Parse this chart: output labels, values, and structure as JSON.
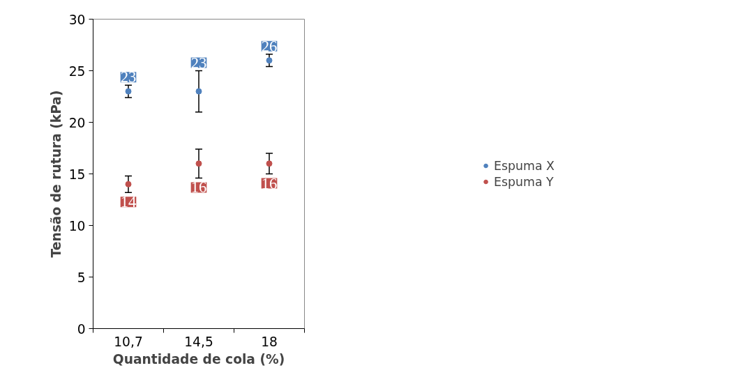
{
  "chart_data": {
    "type": "scatter",
    "xlabel": "Quantidade de cola (%)",
    "ylabel": "Tensão de rutura (kPa)",
    "categories": [
      "10,7",
      "14,5",
      "18"
    ],
    "series": [
      {
        "name": "Espuma X",
        "color": "#4f81bd",
        "values": [
          23,
          23,
          26
        ],
        "errors": [
          0.6,
          2,
          0.6
        ]
      },
      {
        "name": "Espuma Y",
        "color": "#c0504d",
        "values": [
          14,
          16,
          16
        ],
        "errors": [
          0.8,
          1.4,
          1
        ]
      }
    ],
    "ylim": [
      0,
      30
    ],
    "yticks": [
      0,
      5,
      10,
      15,
      20,
      25,
      30
    ],
    "data_labels": true,
    "legend": "right",
    "grid": false,
    "marker": "circle"
  }
}
